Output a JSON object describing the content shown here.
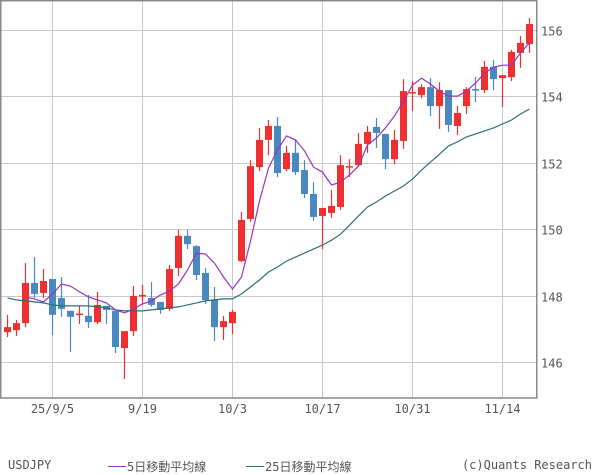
{
  "chart_data": {
    "type": "candlestick",
    "title": "USDJPY",
    "symbol": "USDJPY",
    "xlabel": "",
    "ylabel": "",
    "ylim": [
      145.0,
      156.8
    ],
    "yticks": [
      146,
      148,
      150,
      152,
      154,
      156
    ],
    "ytick_labels": [
      "146",
      "148",
      "150",
      "152",
      "154",
      "156"
    ],
    "xtick_labels": [
      "25/9/5",
      "9/19",
      "10/3",
      "10/17",
      "10/31",
      "11/14"
    ],
    "xtick_candle_index": [
      5,
      15,
      25,
      35,
      45,
      55
    ],
    "grid": true,
    "legend_position": "bottom",
    "colors": {
      "up": "#f03030",
      "down": "#4a88c0",
      "ma5": "#9933bb",
      "ma25": "#2a7070",
      "grid": "#c8c8c8",
      "frame": "#888888",
      "text": "#555555"
    },
    "candles": [
      {
        "o": 146.9,
        "h": 147.42,
        "l": 146.75,
        "c": 147.05
      },
      {
        "o": 146.96,
        "h": 147.27,
        "l": 146.78,
        "c": 147.17
      },
      {
        "o": 147.17,
        "h": 148.98,
        "l": 147.05,
        "c": 148.38
      },
      {
        "o": 148.38,
        "h": 149.16,
        "l": 147.93,
        "c": 148.05
      },
      {
        "o": 148.08,
        "h": 148.8,
        "l": 147.93,
        "c": 148.44
      },
      {
        "o": 148.5,
        "h": 148.5,
        "l": 146.81,
        "c": 147.42
      },
      {
        "o": 147.93,
        "h": 148.56,
        "l": 147.36,
        "c": 147.6
      },
      {
        "o": 147.54,
        "h": 147.54,
        "l": 146.3,
        "c": 147.36
      },
      {
        "o": 147.43,
        "h": 147.69,
        "l": 147.14,
        "c": 147.46
      },
      {
        "o": 147.39,
        "h": 148.02,
        "l": 147.02,
        "c": 147.2
      },
      {
        "o": 147.2,
        "h": 148.11,
        "l": 147.14,
        "c": 147.72
      },
      {
        "o": 147.69,
        "h": 147.69,
        "l": 147.14,
        "c": 147.57
      },
      {
        "o": 147.54,
        "h": 147.54,
        "l": 146.27,
        "c": 146.45
      },
      {
        "o": 146.42,
        "h": 146.93,
        "l": 145.49,
        "c": 146.93
      },
      {
        "o": 146.93,
        "h": 148.29,
        "l": 146.78,
        "c": 147.99
      },
      {
        "o": 147.99,
        "h": 148.32,
        "l": 147.72,
        "c": 148.02
      },
      {
        "o": 147.93,
        "h": 148.41,
        "l": 147.66,
        "c": 147.72
      },
      {
        "o": 147.81,
        "h": 147.81,
        "l": 147.45,
        "c": 147.57
      },
      {
        "o": 147.6,
        "h": 148.92,
        "l": 147.54,
        "c": 148.8
      },
      {
        "o": 148.83,
        "h": 149.98,
        "l": 148.59,
        "c": 149.8
      },
      {
        "o": 149.8,
        "h": 149.98,
        "l": 149.4,
        "c": 149.55
      },
      {
        "o": 149.49,
        "h": 149.52,
        "l": 148.47,
        "c": 148.62
      },
      {
        "o": 148.68,
        "h": 148.83,
        "l": 147.75,
        "c": 147.87
      },
      {
        "o": 147.87,
        "h": 148.26,
        "l": 146.63,
        "c": 147.05
      },
      {
        "o": 147.05,
        "h": 147.39,
        "l": 146.66,
        "c": 147.23
      },
      {
        "o": 147.17,
        "h": 147.57,
        "l": 146.84,
        "c": 147.51
      },
      {
        "o": 149.04,
        "h": 150.52,
        "l": 149.01,
        "c": 150.28
      },
      {
        "o": 150.31,
        "h": 152.08,
        "l": 150.22,
        "c": 151.9
      },
      {
        "o": 151.87,
        "h": 153.05,
        "l": 151.75,
        "c": 152.69
      },
      {
        "o": 152.69,
        "h": 153.29,
        "l": 152.23,
        "c": 153.11
      },
      {
        "o": 153.11,
        "h": 153.38,
        "l": 151.57,
        "c": 151.69
      },
      {
        "o": 151.81,
        "h": 152.51,
        "l": 151.75,
        "c": 152.3
      },
      {
        "o": 152.3,
        "h": 152.69,
        "l": 151.63,
        "c": 151.72
      },
      {
        "o": 151.78,
        "h": 152.08,
        "l": 150.94,
        "c": 151.06
      },
      {
        "o": 151.06,
        "h": 151.42,
        "l": 150.25,
        "c": 150.37
      },
      {
        "o": 150.4,
        "h": 150.64,
        "l": 149.4,
        "c": 150.64
      },
      {
        "o": 150.49,
        "h": 151.18,
        "l": 150.34,
        "c": 150.7
      },
      {
        "o": 150.67,
        "h": 152.23,
        "l": 150.58,
        "c": 151.93
      },
      {
        "o": 151.88,
        "h": 152.11,
        "l": 151.57,
        "c": 151.9
      },
      {
        "o": 151.93,
        "h": 152.9,
        "l": 151.87,
        "c": 152.57
      },
      {
        "o": 152.57,
        "h": 153.11,
        "l": 152.3,
        "c": 152.93
      },
      {
        "o": 153.08,
        "h": 153.35,
        "l": 152.45,
        "c": 152.9
      },
      {
        "o": 152.87,
        "h": 152.87,
        "l": 151.81,
        "c": 152.11
      },
      {
        "o": 152.11,
        "h": 152.99,
        "l": 151.96,
        "c": 152.69
      },
      {
        "o": 152.66,
        "h": 154.52,
        "l": 152.42,
        "c": 154.16
      },
      {
        "o": 154.1,
        "h": 154.46,
        "l": 153.56,
        "c": 154.13
      },
      {
        "o": 154.04,
        "h": 154.37,
        "l": 153.95,
        "c": 154.28
      },
      {
        "o": 154.28,
        "h": 154.55,
        "l": 153.41,
        "c": 153.71
      },
      {
        "o": 153.71,
        "h": 154.43,
        "l": 153.02,
        "c": 154.19
      },
      {
        "o": 154.19,
        "h": 154.19,
        "l": 152.93,
        "c": 153.14
      },
      {
        "o": 153.11,
        "h": 153.71,
        "l": 152.84,
        "c": 153.5
      },
      {
        "o": 153.71,
        "h": 154.28,
        "l": 153.47,
        "c": 154.22
      },
      {
        "o": 154.22,
        "h": 154.58,
        "l": 153.83,
        "c": 154.19
      },
      {
        "o": 154.19,
        "h": 155.07,
        "l": 154.1,
        "c": 154.89
      },
      {
        "o": 154.89,
        "h": 155.1,
        "l": 154.19,
        "c": 154.52
      },
      {
        "o": 154.55,
        "h": 154.64,
        "l": 153.68,
        "c": 154.64
      },
      {
        "o": 154.58,
        "h": 155.4,
        "l": 154.46,
        "c": 155.34
      },
      {
        "o": 155.31,
        "h": 155.82,
        "l": 154.86,
        "c": 155.61
      },
      {
        "o": 155.58,
        "h": 156.36,
        "l": 155.31,
        "c": 156.18
      }
    ],
    "series": [
      {
        "name": "5日移動平均線",
        "start_index": 2,
        "values": [
          147.96,
          147.9,
          147.81,
          148.05,
          148.35,
          148.29,
          148.11,
          147.96,
          147.87,
          147.78,
          147.57,
          147.48,
          147.6,
          147.75,
          147.84,
          148.02,
          148.14,
          148.35,
          148.77,
          149.28,
          149.25,
          148.98,
          148.56,
          148.2,
          148.56,
          149.64,
          150.85,
          151.84,
          152.39,
          152.81,
          152.69,
          152.36,
          151.87,
          151.72,
          151.33,
          151.42,
          151.63,
          151.9,
          152.54,
          152.75,
          153.05,
          153.41,
          153.86,
          154.34,
          154.55,
          154.37,
          154.16,
          154.01,
          154.01,
          154.16,
          154.4,
          154.7,
          154.88,
          154.94,
          154.94,
          155.31,
          155.61
        ]
      },
      {
        "name": "25日移動平均線",
        "start_index": 0,
        "values": [
          147.93,
          147.87,
          147.84,
          147.81,
          147.78,
          147.72,
          147.69,
          147.69,
          147.69,
          147.69,
          147.66,
          147.63,
          147.57,
          147.54,
          147.54,
          147.54,
          147.57,
          147.6,
          147.63,
          147.66,
          147.72,
          147.78,
          147.84,
          147.87,
          147.9,
          147.9,
          148.05,
          148.26,
          148.47,
          148.71,
          148.86,
          149.04,
          149.16,
          149.28,
          149.4,
          149.52,
          149.67,
          149.85,
          150.12,
          150.4,
          150.67,
          150.82,
          151.0,
          151.15,
          151.3,
          151.51,
          151.78,
          152.02,
          152.26,
          152.51,
          152.63,
          152.78,
          152.87,
          152.96,
          153.05,
          153.17,
          153.29,
          153.47,
          153.62
        ]
      }
    ]
  },
  "legend": {
    "ticker": "USDJPY",
    "ma5_label": "5日移動平均線",
    "ma25_label": "25日移動平均線",
    "credit": "(c)Quants Research"
  }
}
